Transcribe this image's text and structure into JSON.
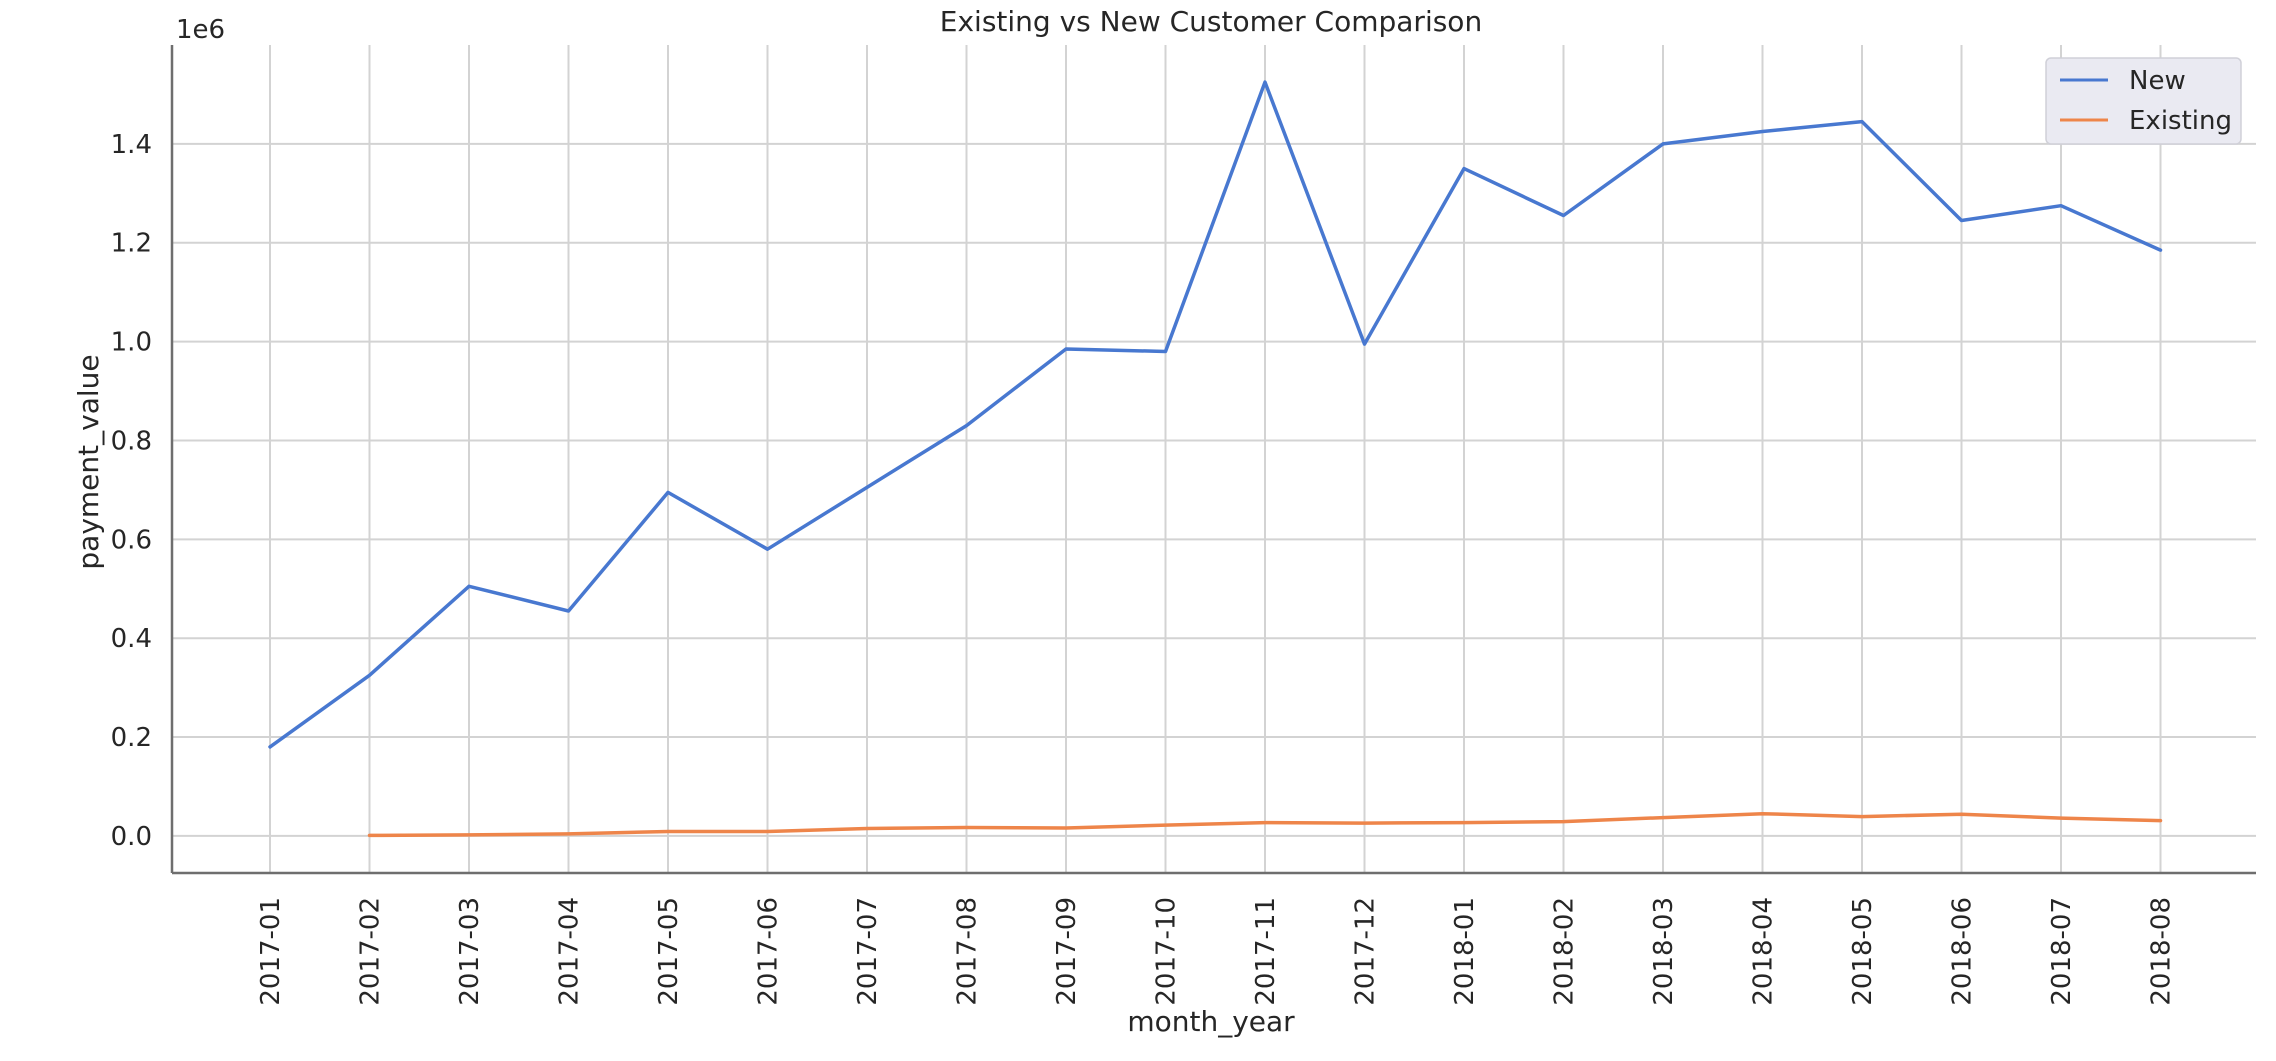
{
  "chart_data": {
    "type": "line",
    "title": "Existing vs New Customer Comparison",
    "xlabel": "month_year",
    "ylabel": "payment_value",
    "y_offset_label": "1e6",
    "x": [
      "2017-01",
      "2017-02",
      "2017-03",
      "2017-04",
      "2017-05",
      "2017-06",
      "2017-07",
      "2017-08",
      "2017-09",
      "2017-10",
      "2017-11",
      "2017-12",
      "2018-01",
      "2018-02",
      "2018-03",
      "2018-04",
      "2018-05",
      "2018-06",
      "2018-07",
      "2018-08"
    ],
    "series": [
      {
        "name": "New",
        "color": "#4878d0",
        "values": [
          0.18,
          0.325,
          0.505,
          0.455,
          0.695,
          0.58,
          0.705,
          0.83,
          0.985,
          0.98,
          1.525,
          0.995,
          1.35,
          1.255,
          1.4,
          1.425,
          1.445,
          1.245,
          1.275,
          1.185
        ]
      },
      {
        "name": "Existing",
        "color": "#ee854a",
        "values": [
          null,
          0.001,
          0.002,
          0.004,
          0.009,
          0.009,
          0.015,
          0.017,
          0.016,
          0.022,
          0.027,
          0.026,
          0.027,
          0.029,
          0.037,
          0.045,
          0.039,
          0.044,
          0.036,
          0.031
        ]
      }
    ],
    "yticks": [
      "0.0",
      "0.2",
      "0.4",
      "0.6",
      "0.8",
      "1.0",
      "1.2",
      "1.4"
    ],
    "ytick_values": [
      0,
      0.2,
      0.4,
      0.6,
      0.8,
      1.0,
      1.2,
      1.4
    ],
    "ylim": [
      -0.075,
      1.6
    ],
    "grid": true,
    "legend_position": "top-right"
  }
}
